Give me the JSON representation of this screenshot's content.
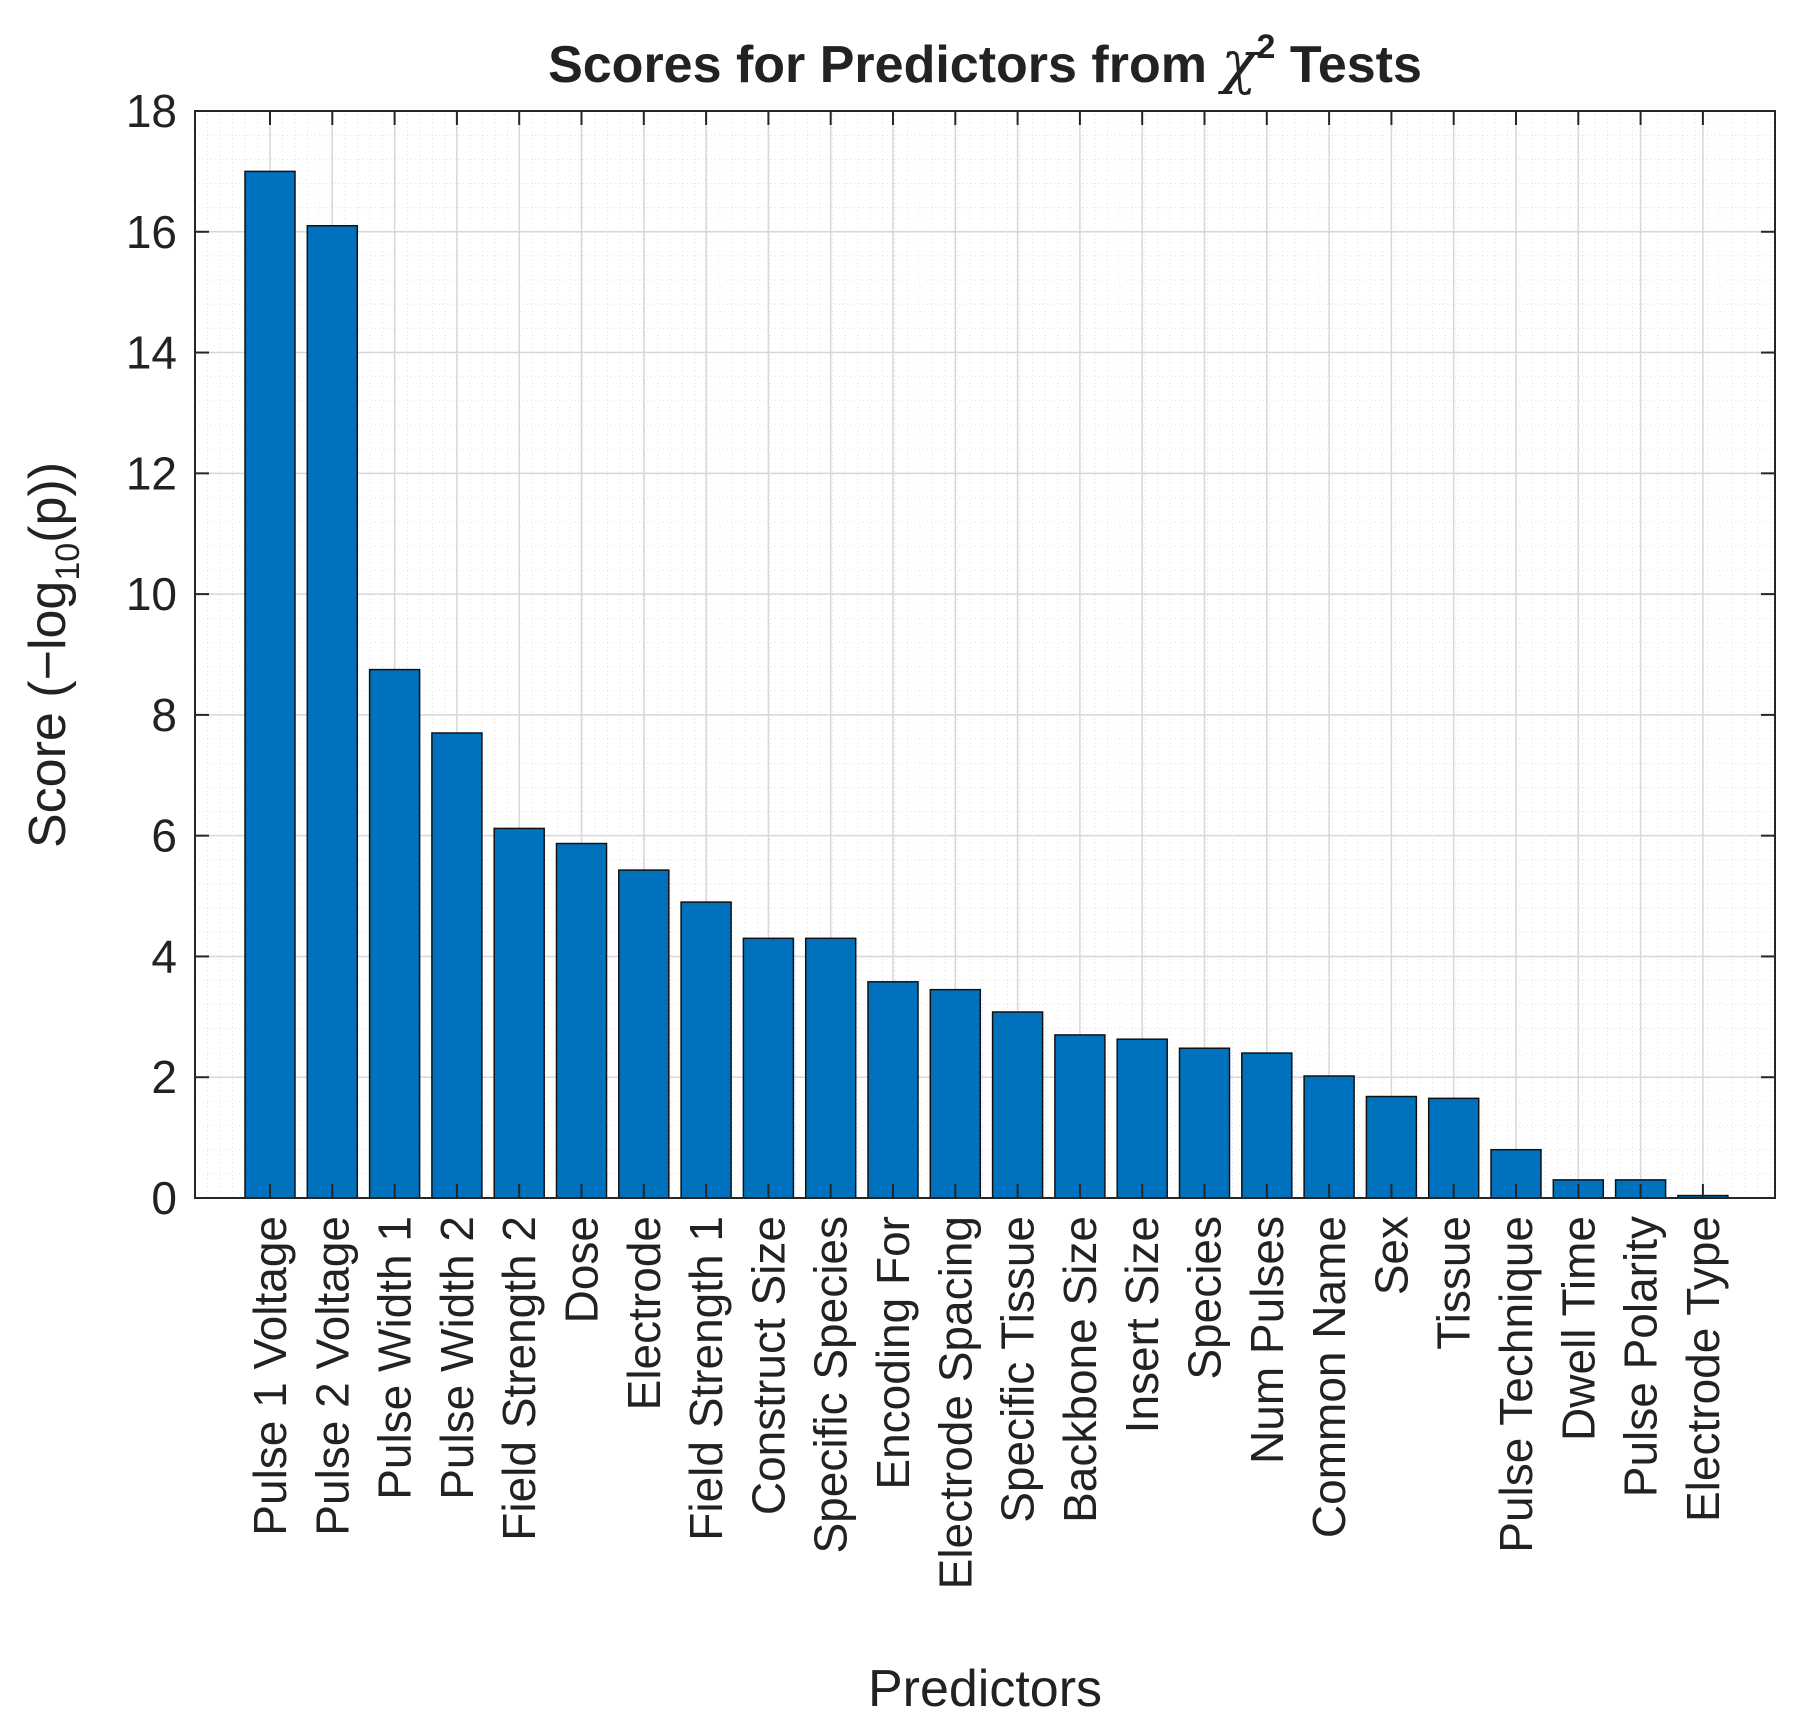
{
  "chart_data": {
    "type": "bar",
    "title": {
      "prefix": "Scores for Predictors from ",
      "symbol": "χ",
      "superscript": "2",
      "suffix": " Tests"
    },
    "xlabel": "Predictors",
    "ylabel": {
      "prefix": "Score (−log",
      "subscript": "10",
      "suffix": "(p))"
    },
    "ylim": [
      0,
      18
    ],
    "yticks": [
      "0",
      "2",
      "4",
      "6",
      "8",
      "10",
      "12",
      "14",
      "16",
      "18"
    ],
    "grid": true,
    "minor_grid": true,
    "bar_color": "#0072bd",
    "categories": [
      "Pulse 1 Voltage",
      "Pulse 2 Voltage",
      "Pulse Width 1",
      "Pulse Width 2",
      "Field Strength 2",
      "Dose",
      "Electrode",
      "Field Strength 1",
      "Construct Size",
      "Specific Species",
      "Encoding For",
      "Electrode Spacing",
      "Specific Tissue",
      "Backbone Size",
      "Insert Size",
      "Species",
      "Num Pulses",
      "Common Name",
      "Sex",
      "Tissue",
      "Pulse Technique",
      "Dwell Time",
      "Pulse Polarity",
      "Electrode Type"
    ],
    "values": [
      17.0,
      16.1,
      8.75,
      7.7,
      6.12,
      5.87,
      5.43,
      4.9,
      4.3,
      4.3,
      3.58,
      3.45,
      3.08,
      2.7,
      2.63,
      2.48,
      2.4,
      2.02,
      1.68,
      1.65,
      0.8,
      0.3,
      0.3,
      0.04
    ]
  }
}
